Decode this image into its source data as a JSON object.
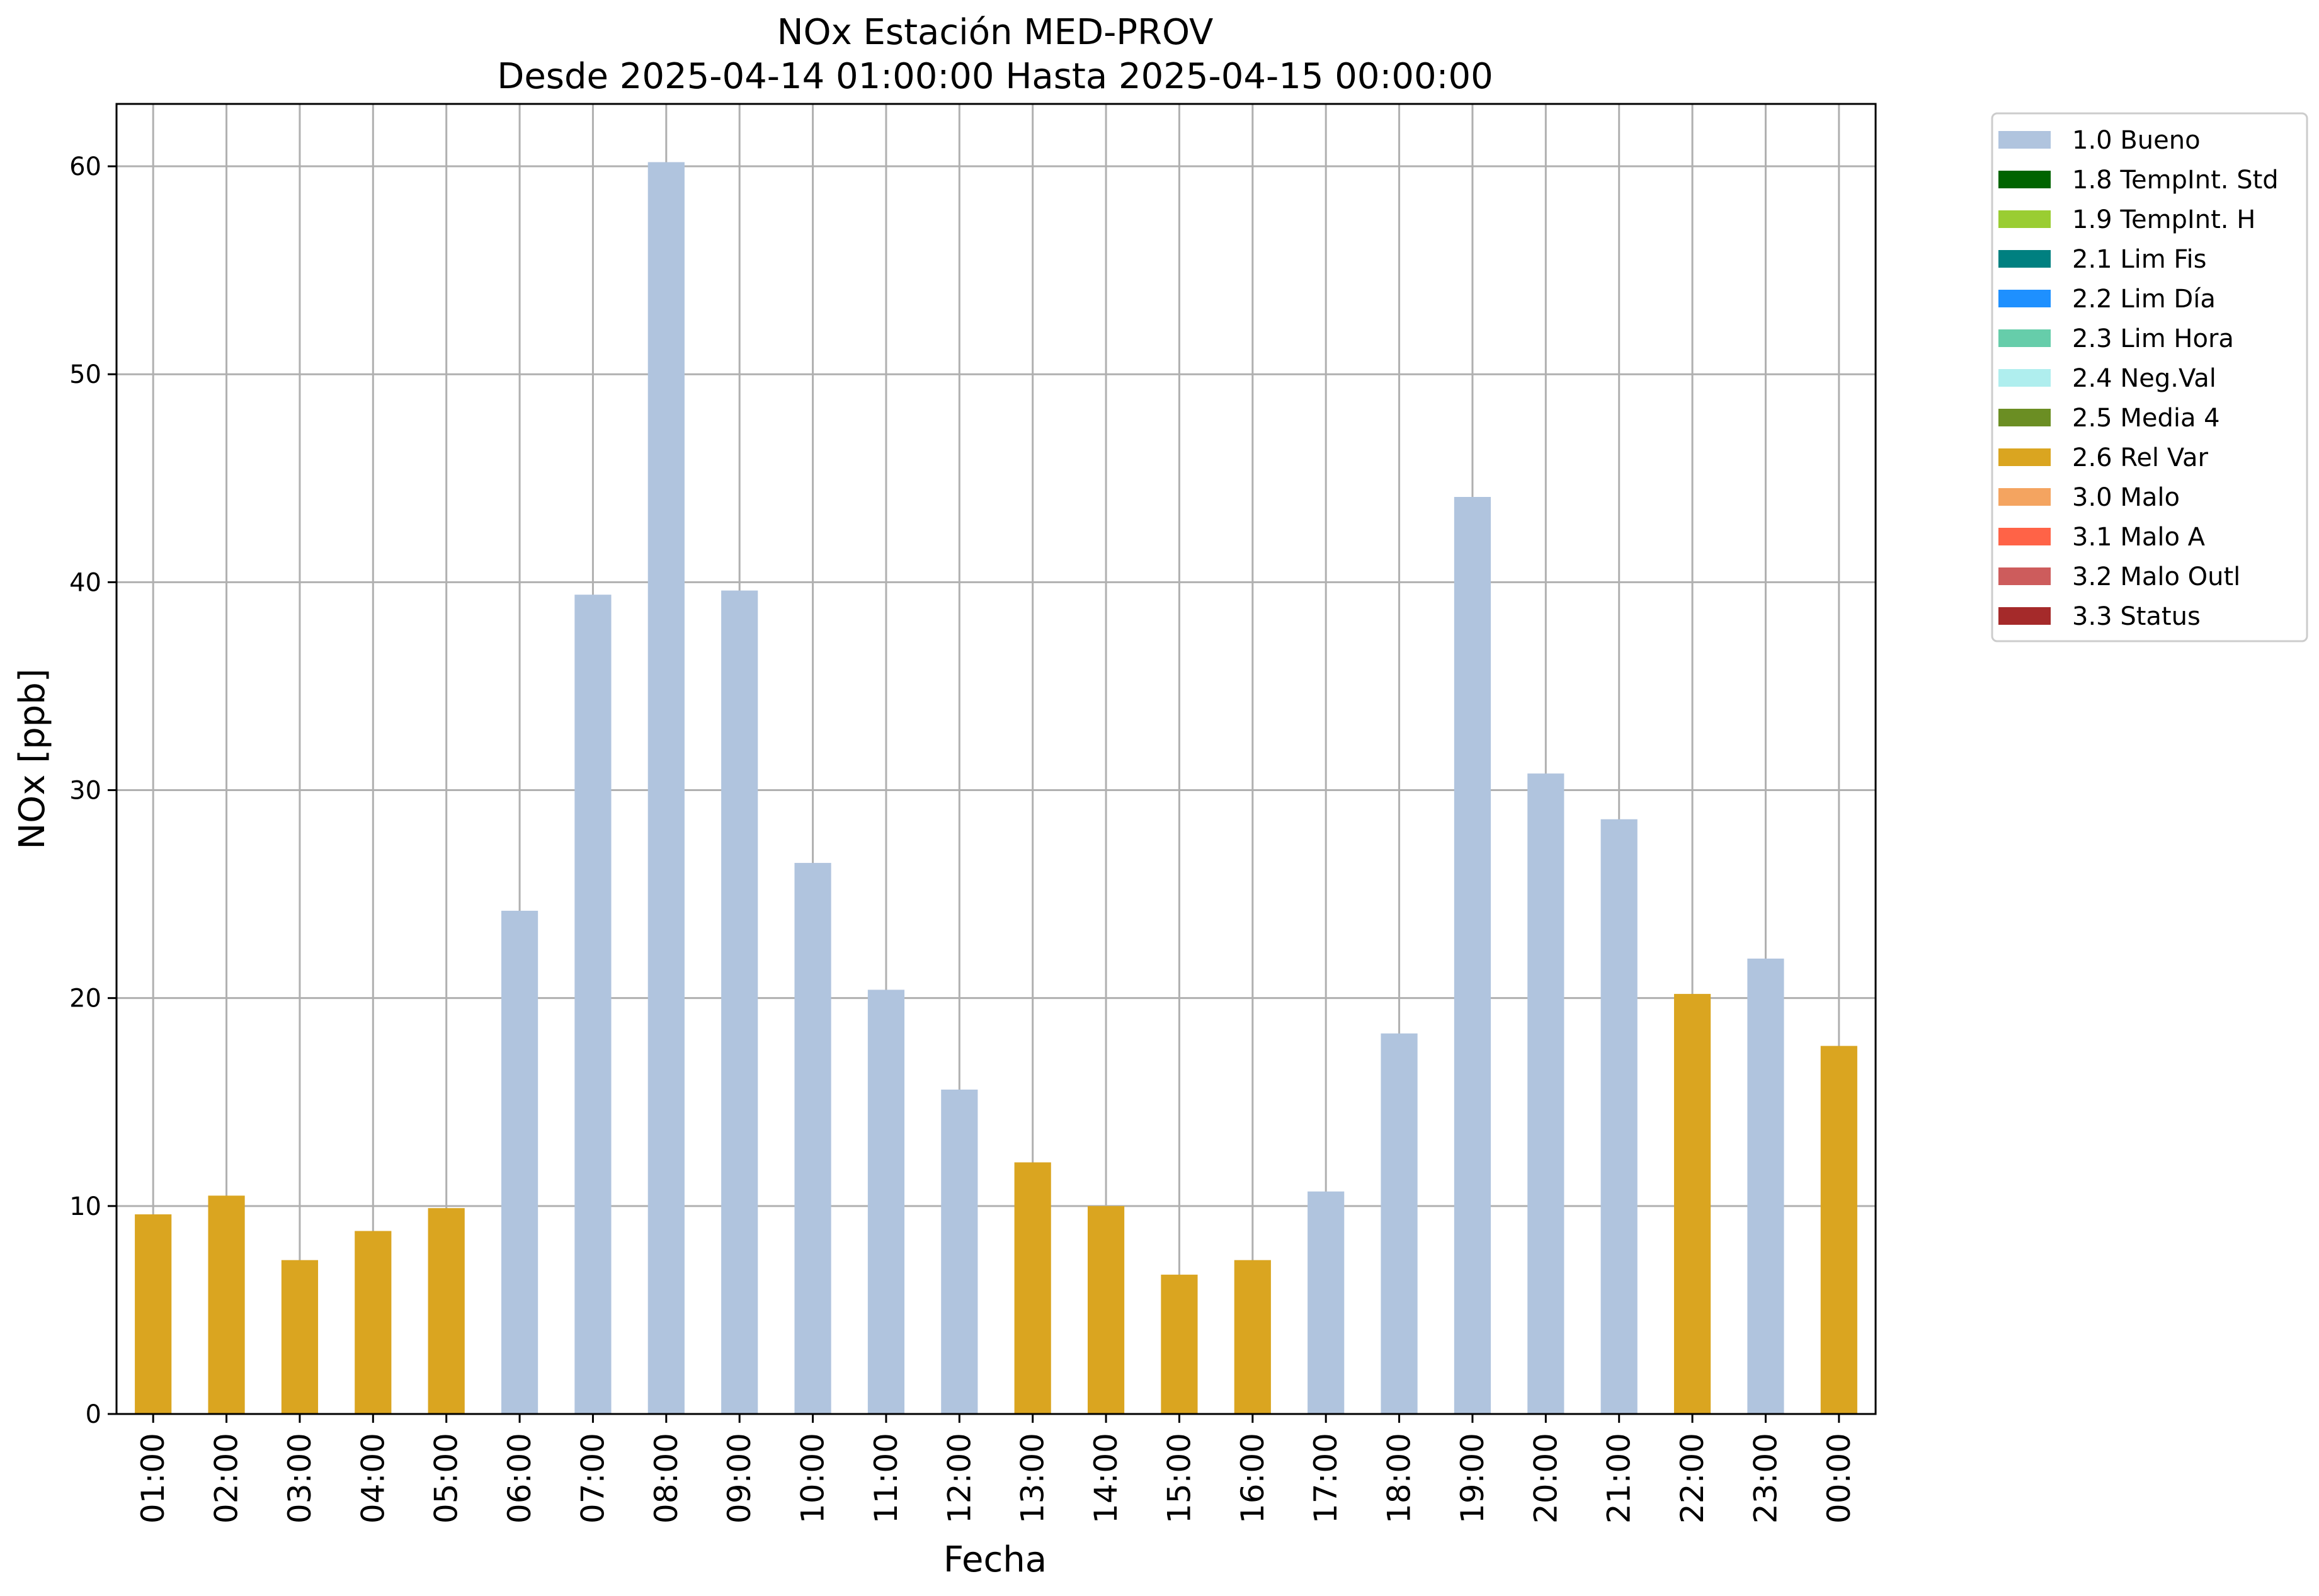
{
  "chart_data": {
    "type": "bar",
    "title": "NOx Estación MED-PROV",
    "subtitle": "Desde 2025-04-14 01:00:00 Hasta 2025-04-15 00:00:00",
    "xlabel": "Fecha",
    "ylabel": "NOx [ppb]",
    "ylim": [
      0,
      63
    ],
    "yticks": [
      0,
      10,
      20,
      30,
      40,
      50,
      60
    ],
    "grid": true,
    "legend_position": "outside-top-right",
    "categories": [
      "01:00",
      "02:00",
      "03:00",
      "04:00",
      "05:00",
      "06:00",
      "07:00",
      "08:00",
      "09:00",
      "10:00",
      "11:00",
      "12:00",
      "13:00",
      "14:00",
      "15:00",
      "16:00",
      "17:00",
      "18:00",
      "19:00",
      "20:00",
      "21:00",
      "22:00",
      "23:00",
      "00:00"
    ],
    "values": [
      9.6,
      10.5,
      7.4,
      8.8,
      9.9,
      24.2,
      39.4,
      60.2,
      39.6,
      26.5,
      20.4,
      15.6,
      12.1,
      10.0,
      6.7,
      7.4,
      10.7,
      18.3,
      44.1,
      30.8,
      28.6,
      20.2,
      21.9,
      17.7
    ],
    "flags": [
      "2.6 Rel Var",
      "2.6 Rel Var",
      "2.6 Rel Var",
      "2.6 Rel Var",
      "2.6 Rel Var",
      "1.0 Bueno",
      "1.0 Bueno",
      "1.0 Bueno",
      "1.0 Bueno",
      "1.0 Bueno",
      "1.0 Bueno",
      "1.0 Bueno",
      "2.6 Rel Var",
      "2.6 Rel Var",
      "2.6 Rel Var",
      "2.6 Rel Var",
      "1.0 Bueno",
      "1.0 Bueno",
      "1.0 Bueno",
      "1.0 Bueno",
      "1.0 Bueno",
      "2.6 Rel Var",
      "1.0 Bueno",
      "2.6 Rel Var"
    ],
    "legend": [
      {
        "label": "1.0 Bueno",
        "color": "#b0c4de"
      },
      {
        "label": "1.8 TempInt. Std",
        "color": "#006400"
      },
      {
        "label": "1.9 TempInt. H",
        "color": "#9acd32"
      },
      {
        "label": "2.1 Lim Fis",
        "color": "#008080"
      },
      {
        "label": "2.2 Lim Día",
        "color": "#1e90ff"
      },
      {
        "label": "2.3 Lim Hora",
        "color": "#66cdaa"
      },
      {
        "label": "2.4 Neg.Val",
        "color": "#afeeee"
      },
      {
        "label": "2.5 Media 4",
        "color": "#6b8e23"
      },
      {
        "label": "2.6 Rel Var",
        "color": "#daa520"
      },
      {
        "label": "3.0 Malo",
        "color": "#f4a460"
      },
      {
        "label": "3.1 Malo A",
        "color": "#ff6347"
      },
      {
        "label": "3.2 Malo Outl",
        "color": "#cd5c5c"
      },
      {
        "label": "3.3 Status",
        "color": "#a52a2a"
      }
    ]
  }
}
